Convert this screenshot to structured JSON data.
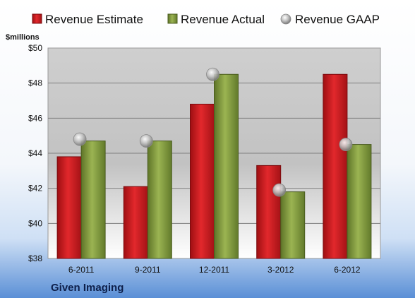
{
  "chart_data": {
    "type": "bar",
    "title": "",
    "ylabel": "$millions",
    "xlabel": "",
    "company": "Given Imaging",
    "categories": [
      "6-2011",
      "9-2011",
      "12-2011",
      "3-2012",
      "6-2012"
    ],
    "ylim": [
      38,
      50
    ],
    "y_ticks": [
      "$38",
      "$40",
      "$42",
      "$44",
      "$46",
      "$48",
      "$50"
    ],
    "y_tick_values": [
      38,
      40,
      42,
      44,
      46,
      48,
      50
    ],
    "grid": true,
    "legend_position": "top",
    "series": [
      {
        "name": "Revenue Estimate",
        "kind": "bar",
        "color": "#c8191e",
        "values": [
          43.8,
          42.1,
          46.8,
          43.3,
          48.5
        ]
      },
      {
        "name": "Revenue Actual",
        "kind": "bar",
        "color": "#7f9a3a",
        "values": [
          44.7,
          44.7,
          48.5,
          41.8,
          44.5
        ]
      },
      {
        "name": "Revenue GAAP",
        "kind": "marker",
        "color": "#a8a8a8",
        "values": [
          44.8,
          44.7,
          48.5,
          41.9,
          44.5
        ]
      }
    ]
  }
}
